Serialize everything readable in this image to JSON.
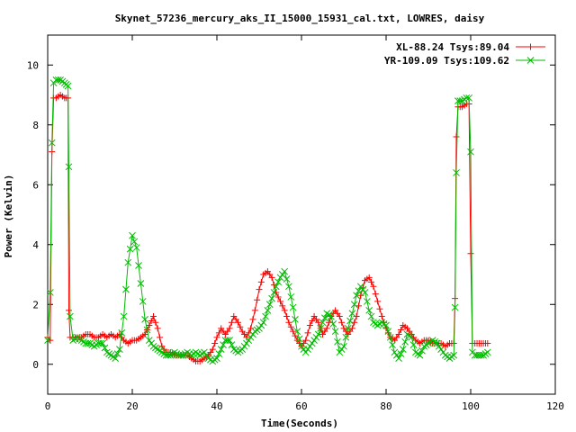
{
  "chart_data": {
    "type": "line",
    "title": "Skynet_57236_mercury_aks_II_15000_15931_cal.txt, LOWRES, daisy",
    "xlabel": "Time(Seconds)",
    "ylabel": "Power (Kelvin)",
    "xlim": [
      0,
      120
    ],
    "ylim": [
      -1,
      11
    ],
    "xticks": [
      0,
      20,
      40,
      60,
      80,
      100,
      120
    ],
    "yticks": [
      0,
      2,
      4,
      6,
      8,
      10
    ],
    "grid": false,
    "legend_position": "top-right",
    "series": [
      {
        "name": "XL-88.24 Tsys:89.04",
        "color": "#ff0000",
        "marker": "plus",
        "x": [
          0,
          0.6,
          1.0,
          1.4,
          2,
          3,
          4,
          4.8,
          5.0,
          5.3,
          6,
          7,
          8,
          9,
          10,
          11,
          12,
          13,
          14,
          15,
          16,
          17,
          18,
          19,
          20,
          21,
          22,
          23,
          24,
          25,
          26,
          27,
          28,
          29,
          30,
          31,
          32,
          33,
          34,
          35,
          36,
          37,
          38,
          39,
          40,
          41,
          42,
          43,
          44,
          45,
          46,
          47,
          48,
          49,
          50,
          51,
          52,
          53,
          54,
          55,
          56,
          57,
          58,
          59,
          60,
          61,
          62,
          63,
          64,
          65,
          66,
          67,
          68,
          69,
          70,
          71,
          72,
          73,
          74,
          75,
          76,
          77,
          78,
          79,
          80,
          81,
          82,
          83,
          84,
          85,
          86,
          87,
          88,
          89,
          90,
          91,
          92,
          93,
          94,
          95,
          96,
          96.3,
          96.6,
          97,
          98,
          99,
          99.6,
          100.0,
          100.4,
          101,
          102,
          103,
          104
        ],
        "y": [
          0.9,
          0.8,
          7.1,
          8.9,
          8.9,
          9.0,
          8.9,
          8.9,
          1.8,
          0.9,
          0.9,
          0.9,
          0.9,
          1.0,
          1.0,
          0.9,
          0.9,
          1.0,
          0.9,
          1.0,
          0.9,
          1.0,
          0.8,
          0.7,
          0.8,
          0.8,
          0.9,
          1.0,
          1.3,
          1.6,
          1.2,
          0.6,
          0.4,
          0.4,
          0.3,
          0.3,
          0.3,
          0.3,
          0.2,
          0.1,
          0.1,
          0.2,
          0.3,
          0.5,
          0.9,
          1.2,
          1.0,
          1.2,
          1.6,
          1.4,
          1.1,
          0.9,
          1.2,
          1.8,
          2.5,
          3.0,
          3.1,
          2.9,
          2.4,
          2.1,
          1.8,
          1.4,
          1.1,
          0.8,
          0.6,
          0.8,
          1.3,
          1.6,
          1.4,
          1.0,
          1.2,
          1.6,
          1.8,
          1.6,
          1.2,
          1.0,
          1.2,
          1.6,
          2.3,
          2.8,
          2.9,
          2.6,
          2.1,
          1.6,
          1.2,
          0.9,
          0.8,
          1.0,
          1.3,
          1.2,
          1.0,
          0.8,
          0.7,
          0.8,
          0.8,
          0.7,
          0.7,
          0.7,
          0.6,
          0.7,
          0.7,
          2.2,
          7.6,
          8.6,
          8.6,
          8.7,
          8.7,
          3.7,
          0.7,
          0.7,
          0.7,
          0.7,
          0.7
        ]
      },
      {
        "name": "YR-109.09 Tsys:109.62",
        "color": "#00bb00",
        "marker": "cross",
        "x": [
          0,
          0.6,
          1.0,
          1.4,
          2,
          3,
          4,
          4.8,
          5.0,
          5.3,
          6,
          7,
          8,
          9,
          10,
          11,
          12,
          13,
          14,
          15,
          16,
          17,
          18,
          19,
          20,
          21,
          22,
          23,
          24,
          25,
          26,
          27,
          28,
          29,
          30,
          31,
          32,
          33,
          34,
          35,
          36,
          37,
          38,
          39,
          40,
          41,
          42,
          43,
          44,
          45,
          46,
          47,
          48,
          49,
          50,
          51,
          52,
          53,
          54,
          55,
          56,
          57,
          58,
          59,
          60,
          61,
          62,
          63,
          64,
          65,
          66,
          67,
          68,
          69,
          70,
          71,
          72,
          73,
          74,
          75,
          76,
          77,
          78,
          79,
          80,
          81,
          82,
          83,
          84,
          85,
          86,
          87,
          88,
          89,
          90,
          91,
          92,
          93,
          94,
          95,
          96,
          96.3,
          96.6,
          97,
          98,
          99,
          99.6,
          100.0,
          100.4,
          101,
          102,
          103,
          104
        ],
        "y": [
          0.8,
          2.4,
          7.4,
          9.4,
          9.5,
          9.5,
          9.4,
          9.3,
          6.6,
          1.6,
          0.8,
          0.9,
          0.8,
          0.7,
          0.7,
          0.6,
          0.7,
          0.7,
          0.4,
          0.3,
          0.2,
          0.5,
          1.6,
          3.4,
          4.3,
          3.9,
          2.7,
          1.5,
          0.8,
          0.6,
          0.5,
          0.4,
          0.3,
          0.3,
          0.4,
          0.3,
          0.3,
          0.4,
          0.3,
          0.4,
          0.3,
          0.4,
          0.2,
          0.1,
          0.2,
          0.5,
          0.8,
          0.8,
          0.5,
          0.4,
          0.5,
          0.7,
          0.9,
          1.1,
          1.2,
          1.4,
          1.8,
          2.2,
          2.6,
          2.9,
          3.1,
          2.6,
          1.9,
          1.1,
          0.6,
          0.4,
          0.6,
          0.8,
          1.0,
          1.4,
          1.7,
          1.6,
          1.1,
          0.4,
          0.6,
          1.2,
          1.7,
          2.3,
          2.6,
          2.4,
          1.8,
          1.4,
          1.3,
          1.4,
          1.3,
          0.9,
          0.4,
          0.2,
          0.5,
          1.0,
          0.9,
          0.4,
          0.3,
          0.6,
          0.7,
          0.8,
          0.7,
          0.5,
          0.3,
          0.2,
          0.3,
          1.9,
          6.4,
          8.8,
          8.8,
          8.9,
          8.9,
          7.1,
          0.4,
          0.3,
          0.3,
          0.3,
          0.4
        ]
      }
    ]
  }
}
